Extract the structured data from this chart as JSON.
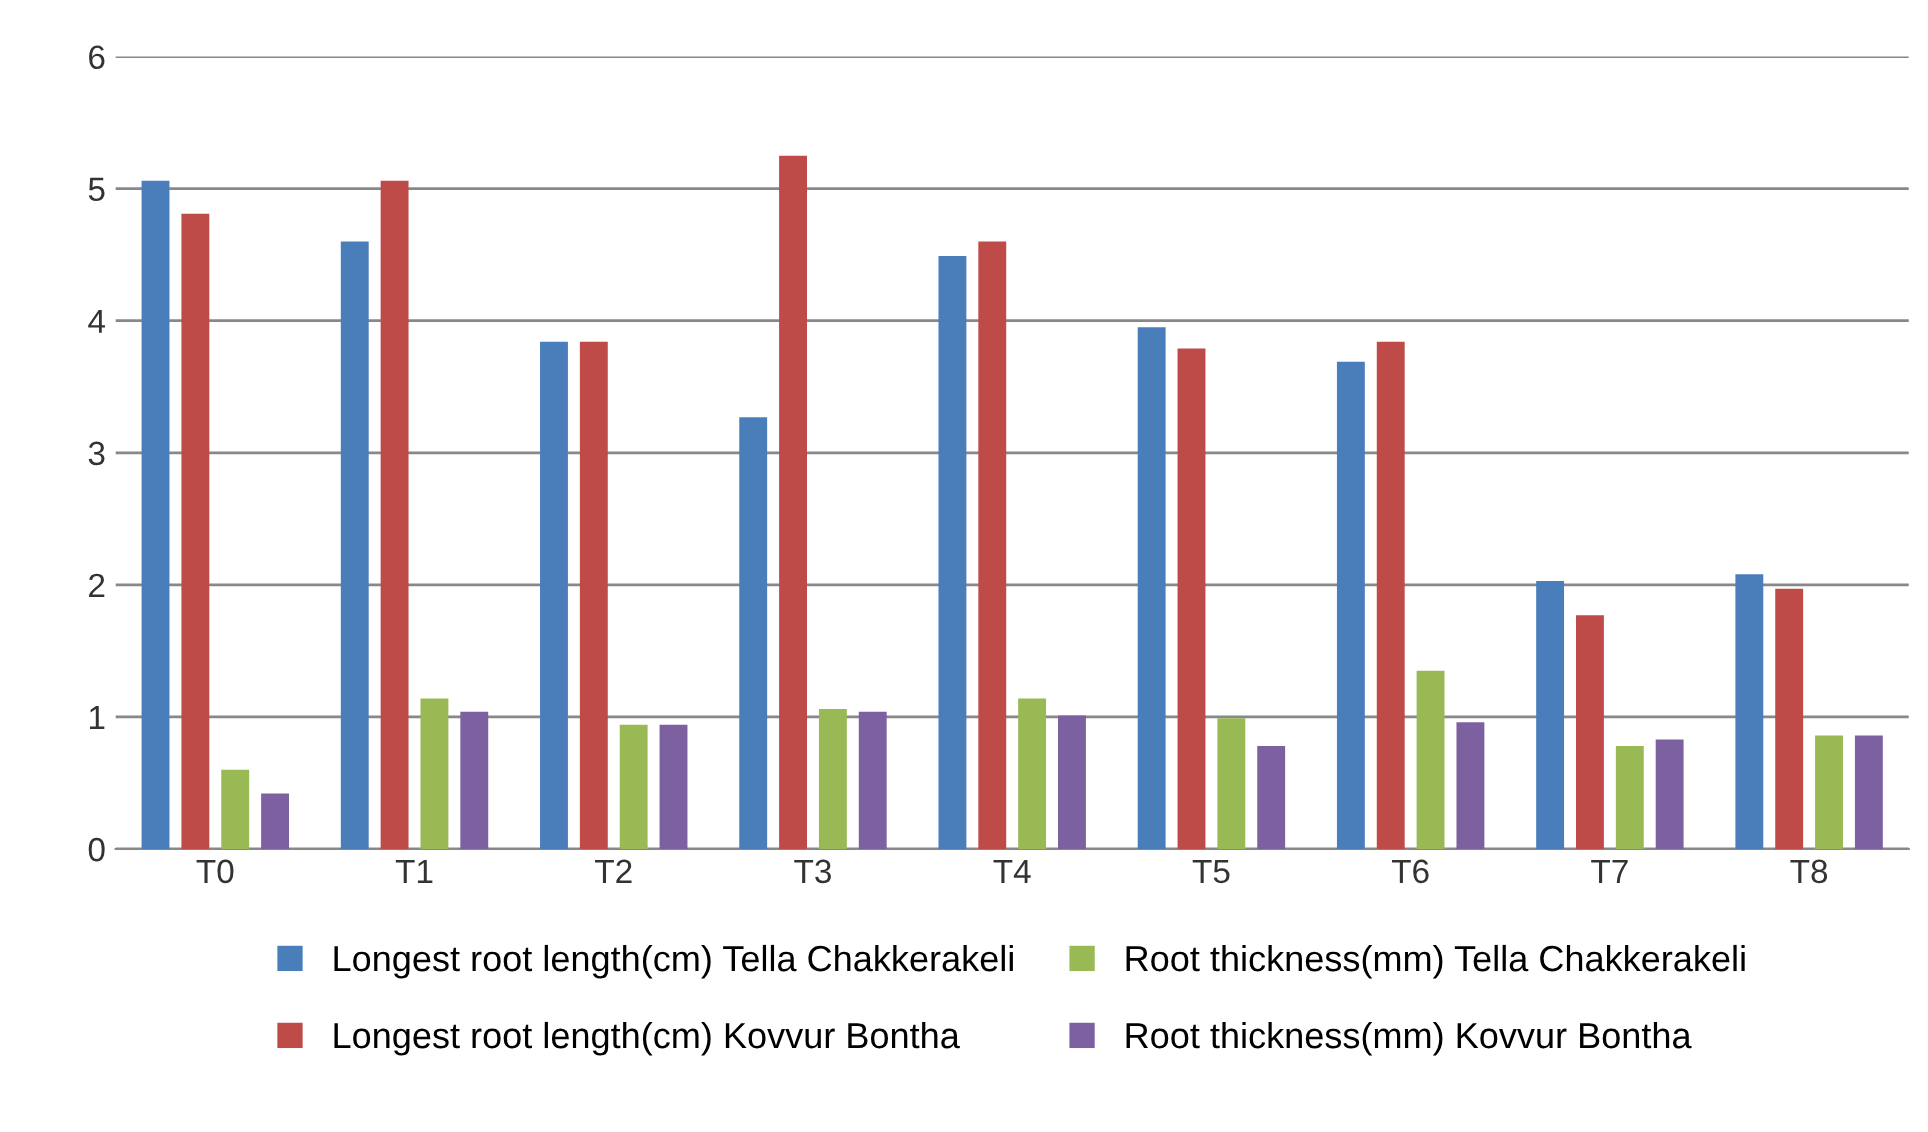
{
  "chart_data": {
    "type": "bar",
    "categories": [
      "T0",
      "T1",
      "T2",
      "T3",
      "T4",
      "T5",
      "T6",
      "T7",
      "T8"
    ],
    "series": [
      {
        "name": "Longest root length(cm) Tella Chakkerakeli",
        "color": "#4a7ebb",
        "values": [
          5.06,
          4.6,
          3.84,
          3.27,
          4.49,
          3.95,
          3.69,
          2.03,
          2.08
        ]
      },
      {
        "name": "Longest root length(cm) Kovvur Bontha",
        "color": "#be4b48",
        "values": [
          4.81,
          5.06,
          3.84,
          5.25,
          4.6,
          3.79,
          3.84,
          1.77,
          1.97
        ]
      },
      {
        "name": "Root thickness(mm) Tella Chakkerakeli",
        "color": "#98b954",
        "values": [
          0.6,
          1.14,
          0.94,
          1.06,
          1.14,
          0.99,
          1.35,
          0.78,
          0.86
        ]
      },
      {
        "name": "Root thickness(mm) Kovvur Bontha",
        "color": "#7d60a0",
        "values": [
          0.42,
          1.04,
          0.94,
          1.04,
          1.01,
          0.78,
          0.96,
          0.83,
          0.86
        ]
      }
    ],
    "ylim": [
      0,
      6
    ],
    "yticks": [
      0,
      1,
      2,
      3,
      4,
      5,
      6
    ],
    "grid": "y",
    "legend": "bottom"
  }
}
